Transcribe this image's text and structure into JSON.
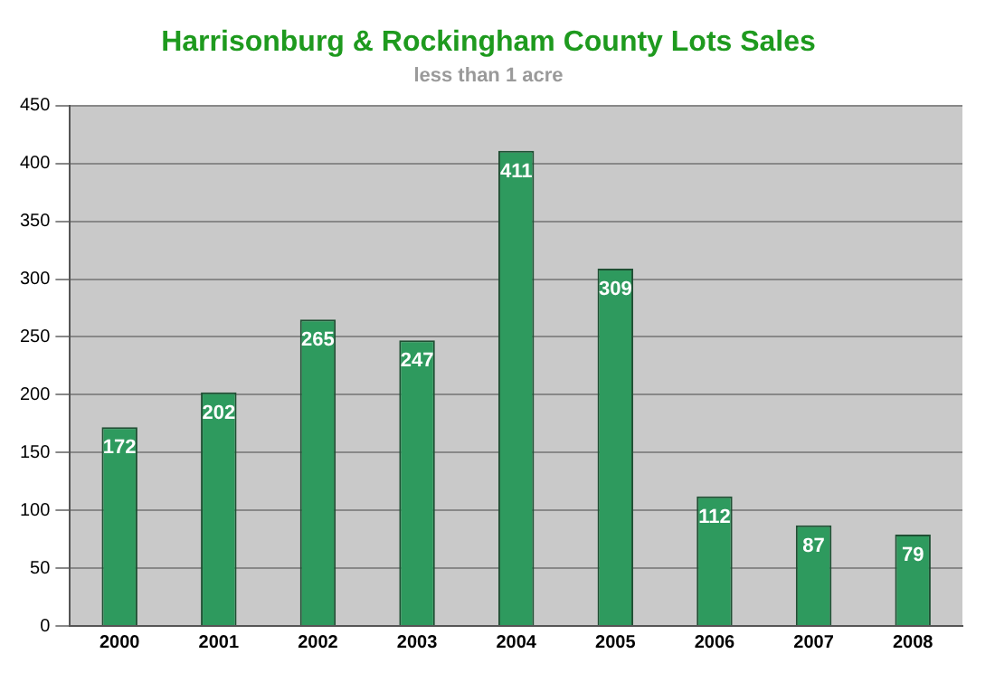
{
  "chart_data": {
    "type": "bar",
    "title": "Harrisonburg & Rockingham County Lots Sales",
    "subtitle": "less than 1 acre",
    "categories": [
      "2000",
      "2001",
      "2002",
      "2003",
      "2004",
      "2005",
      "2006",
      "2007",
      "2008"
    ],
    "values": [
      172,
      202,
      265,
      247,
      411,
      309,
      112,
      87,
      79
    ],
    "color": "#2e9a5e",
    "ylim": [
      0,
      450
    ],
    "yticks": [
      0,
      50,
      100,
      150,
      200,
      250,
      300,
      350,
      400,
      450
    ],
    "grid": "y",
    "data_labels": true
  }
}
